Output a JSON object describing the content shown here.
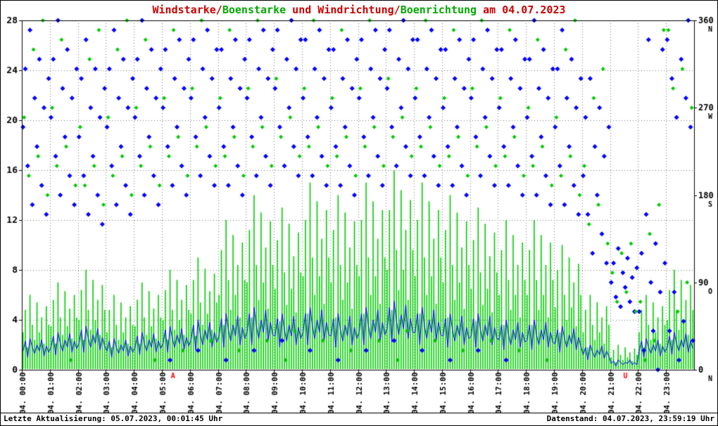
{
  "title": {
    "segments": [
      {
        "text": "Windstarke/",
        "color": "#cc0000"
      },
      {
        "text": "Boenstarke",
        "color": "#00aa00"
      },
      {
        "text": " und Windrichtung/",
        "color": "#cc0000"
      },
      {
        "text": "Boenrichtung",
        "color": "#00aa00"
      },
      {
        "text": " am 04.07.2023",
        "color": "#cc0000"
      }
    ]
  },
  "footer": {
    "left": "Letzte Aktualisierung: 05.07.2023, 00:01:45 Uhr",
    "right": "Datenstand: 04.07.2023, 23:59:19 Uhr"
  },
  "chart_data": {
    "type": "mixed",
    "title": "Windstarke/Boenstarke und Windrichtung/Boenrichtung am 04.07.2023",
    "grid": true,
    "colors": {
      "wind": "#0000ff",
      "gust": "#00cc00",
      "grid": "#777777",
      "axis": "#000000",
      "sun": "#ff0000"
    },
    "left_axis": {
      "min": 0,
      "max": 28,
      "ticks": [
        0,
        4,
        8,
        12,
        16,
        20,
        24,
        28
      ]
    },
    "right_axis": {
      "min": 0,
      "max": 360,
      "ticks": [
        {
          "v": 360,
          "dir": "N"
        },
        {
          "v": 270,
          "dir": "W"
        },
        {
          "v": 180,
          "dir": "S"
        },
        {
          "v": 90,
          "dir": "O"
        },
        {
          "v": 0,
          "dir": "N"
        }
      ]
    },
    "x_axis": {
      "hours": 24,
      "labels": [
        "04. 00:00",
        "04. 01:00",
        "04. 02:00",
        "04. 03:00",
        "04. 04:00",
        "04. 05:00",
        "04. 06:00",
        "04. 07:00",
        "04. 08:00",
        "04. 09:00",
        "04. 10:00",
        "04. 11:00",
        "04. 12:00",
        "04. 13:00",
        "04. 14:00",
        "04. 15:00",
        "04. 16:00",
        "04. 17:00",
        "04. 18:00",
        "04. 19:00",
        "04. 20:00",
        "04. 21:00",
        "04. 22:00",
        "04. 23:00"
      ]
    },
    "sun_marks": [
      {
        "label": "A",
        "hour": 5.4
      },
      {
        "label": "U",
        "hour": 21.55
      }
    ],
    "series": [
      {
        "name": "Boenstarke",
        "type": "bars",
        "axis": "left",
        "color": "#00cc00",
        "interval_min": 5,
        "values": [
          3,
          4.8,
          1.8,
          6,
          3.6,
          2.4,
          5.4,
          3,
          4.2,
          2.1,
          5.1,
          3.6,
          3.5,
          5.6,
          2.1,
          7,
          4.2,
          2.8,
          6.3,
          3.5,
          4.9,
          2.5,
          6,
          4.2,
          4,
          6.4,
          2.4,
          8,
          4.8,
          3.2,
          7.2,
          4,
          5.6,
          2.8,
          6.8,
          4.8,
          3,
          4.8,
          1.8,
          6,
          3.6,
          2.4,
          5.4,
          3,
          4.2,
          2.1,
          5.1,
          3.6,
          3.5,
          5.6,
          2.1,
          7,
          4.2,
          2.8,
          6.3,
          3.5,
          4.9,
          2.5,
          6,
          4.2,
          4,
          6.4,
          2.4,
          8,
          4.8,
          3.2,
          7.2,
          4,
          5.6,
          2.8,
          6.8,
          4.8,
          4.5,
          7.2,
          2.7,
          9,
          5.4,
          3.6,
          8.1,
          4.5,
          6.3,
          3.2,
          7.7,
          5.4,
          6,
          9.6,
          3.6,
          12,
          7.2,
          4.8,
          10.8,
          6,
          8.4,
          4.2,
          10.2,
          7.2,
          7,
          11.2,
          4.2,
          14,
          8.4,
          5.6,
          12.6,
          7,
          9.8,
          4.9,
          11.9,
          8.4,
          6.5,
          10.4,
          3.9,
          13,
          7.8,
          5.2,
          11.7,
          6.5,
          9.1,
          4.6,
          11,
          7.8,
          7.5,
          12,
          4.5,
          15,
          9,
          6,
          13.5,
          7.5,
          10.5,
          5.3,
          12.8,
          9,
          7,
          11.2,
          4.2,
          14,
          8.4,
          5.6,
          12.6,
          7,
          9.8,
          4.9,
          11.9,
          8.4,
          7.5,
          12,
          4.5,
          15,
          9,
          6,
          13.5,
          7.5,
          10.5,
          5.3,
          12.8,
          9,
          8,
          12.8,
          4.8,
          16,
          9.6,
          6.4,
          14.4,
          8,
          11.2,
          5.6,
          13.6,
          9.6,
          7.5,
          12,
          4.5,
          15,
          9,
          6,
          13.5,
          7.5,
          10.5,
          5.3,
          12.8,
          9,
          7,
          11.2,
          4.2,
          14,
          8.4,
          5.6,
          12.6,
          7,
          9.8,
          4.9,
          11.9,
          8.4,
          6.5,
          10.4,
          3.9,
          13,
          7.8,
          5.2,
          11.7,
          6.5,
          9.1,
          4.6,
          11,
          7.8,
          6,
          9.6,
          3.6,
          12,
          7.2,
          4.8,
          10.8,
          6,
          8.4,
          4.2,
          10.2,
          7.2,
          6,
          9.6,
          3.6,
          12,
          7.2,
          4.8,
          10.8,
          6,
          8.4,
          4.2,
          10.2,
          7.2,
          5,
          8,
          3,
          10,
          6,
          4,
          9,
          5,
          7,
          3.5,
          8.5,
          6,
          3,
          4.8,
          1.8,
          6,
          3.6,
          2.4,
          5.4,
          3,
          4.2,
          2.1,
          5.1,
          3.6,
          1,
          1.6,
          0.6,
          2,
          1.2,
          0.8,
          1.8,
          1,
          1.4,
          0.7,
          1.7,
          1.2,
          3,
          4.8,
          1.8,
          6,
          3.6,
          2.4,
          5.4,
          3,
          4.2,
          2.1,
          5.1,
          3.6,
          4,
          6.4,
          2.4,
          8,
          4.8,
          3.2,
          7.2,
          4,
          5.6,
          2.8,
          6.8,
          4.8
        ]
      },
      {
        "name": "Windstarke",
        "type": "line",
        "axis": "left",
        "color": "#0000ff",
        "interval_min": 5,
        "values": [
          1.5,
          2.3,
          1,
          2.5,
          1.8,
          1.3,
          2,
          1.5,
          2.4,
          1.1,
          1.9,
          1.4,
          1.8,
          2.7,
          1.2,
          3,
          2.1,
          1.5,
          2.4,
          1.8,
          2.9,
          1.4,
          2.3,
          1.7,
          2.1,
          3.2,
          1.4,
          3.5,
          2.5,
          1.8,
          2.8,
          2.1,
          3.3,
          1.6,
          2.6,
          1.9,
          1.5,
          2.3,
          1,
          2.5,
          1.8,
          1.3,
          2,
          1.5,
          2.4,
          1.1,
          1.9,
          1.4,
          1.8,
          2.7,
          1.2,
          3,
          2.1,
          1.5,
          2.4,
          1.8,
          2.9,
          1.4,
          2.3,
          1.7,
          2.1,
          3.2,
          1.4,
          3.5,
          2.5,
          1.8,
          2.8,
          2.1,
          3.3,
          1.6,
          2.6,
          1.9,
          2.4,
          3.6,
          1.6,
          4,
          2.8,
          2,
          3.2,
          2.4,
          3.8,
          1.8,
          3,
          2.2,
          2.7,
          4.1,
          1.8,
          4.5,
          3.2,
          2.3,
          3.6,
          2.7,
          4.3,
          2,
          3.4,
          2.5,
          3,
          4.5,
          2,
          5,
          3.5,
          2.5,
          4,
          3,
          4.8,
          2.3,
          3.8,
          2.8,
          2.7,
          4.1,
          1.8,
          4.5,
          3.2,
          2.3,
          3.6,
          2.7,
          4.3,
          2,
          3.4,
          2.5,
          3,
          4.5,
          2,
          5,
          3.5,
          2.5,
          4,
          3,
          4.8,
          2.3,
          3.8,
          2.8,
          2.7,
          4.1,
          1.8,
          4.5,
          3.2,
          2.3,
          3.6,
          2.7,
          4.3,
          2,
          3.4,
          2.5,
          3,
          4.5,
          2,
          5,
          3.5,
          2.5,
          4,
          3,
          4.8,
          2.3,
          3.8,
          2.8,
          3.3,
          5,
          2.2,
          5.5,
          3.9,
          2.8,
          4.4,
          3.3,
          5.2,
          2.5,
          4.1,
          3,
          3,
          4.5,
          2,
          5,
          3.5,
          2.5,
          4,
          3,
          4.8,
          2.3,
          3.8,
          2.8,
          2.7,
          4.1,
          1.8,
          4.5,
          3.2,
          2.3,
          3.6,
          2.7,
          4.3,
          2,
          3.4,
          2.5,
          2.7,
          4.1,
          1.8,
          4.5,
          3.2,
          2.3,
          3.6,
          2.7,
          4.3,
          2,
          3.4,
          2.5,
          2.4,
          3.6,
          1.6,
          4,
          2.8,
          2,
          3.2,
          2.4,
          3.8,
          1.8,
          3,
          2.2,
          2.4,
          3.6,
          1.6,
          4,
          2.8,
          2,
          3.2,
          2.4,
          3.8,
          1.8,
          3,
          2.2,
          2.1,
          3.2,
          1.4,
          3.5,
          2.5,
          1.8,
          2.8,
          2.1,
          3.3,
          1.6,
          2.6,
          1.9,
          1.2,
          1.8,
          0.8,
          2,
          1.4,
          1,
          1.6,
          1.2,
          1.9,
          0.9,
          1.5,
          1.1,
          0.5,
          0.7,
          0.3,
          0.8,
          0.6,
          0.4,
          0.6,
          0.5,
          0.8,
          0.4,
          0.6,
          0.4,
          1.5,
          2.3,
          1,
          2.5,
          1.8,
          1.3,
          2,
          1.5,
          2.4,
          1.1,
          1.9,
          1.4,
          1.8,
          2.7,
          1.2,
          3,
          2.1,
          1.5,
          2.4,
          1.8,
          2.9,
          1.4,
          2.3,
          1.7
        ]
      },
      {
        "name": "Windrichtung",
        "type": "scatter",
        "axis": "right",
        "color": "#0000ff",
        "interval_min": 5,
        "values": [
          250,
          310,
          210,
          350,
          170,
          280,
          230,
          320,
          190,
          270,
          160,
          300,
          260,
          320,
          220,
          360,
          180,
          290,
          240,
          330,
          200,
          280,
          170,
          310,
          240,
          300,
          200,
          340,
          160,
          270,
          220,
          310,
          180,
          260,
          150,
          290,
          250,
          310,
          210,
          350,
          170,
          280,
          230,
          320,
          190,
          270,
          160,
          300,
          260,
          320,
          220,
          360,
          180,
          290,
          240,
          330,
          200,
          280,
          170,
          310,
          270,
          330,
          230,
          10,
          190,
          300,
          250,
          340,
          210,
          290,
          180,
          320,
          280,
          340,
          240,
          20,
          200,
          310,
          260,
          350,
          220,
          300,
          190,
          330,
          270,
          330,
          230,
          10,
          190,
          300,
          250,
          340,
          210,
          290,
          180,
          320,
          280,
          340,
          240,
          20,
          200,
          310,
          260,
          350,
          220,
          300,
          190,
          330,
          290,
          350,
          250,
          30,
          210,
          320,
          270,
          360,
          230,
          310,
          200,
          340,
          280,
          340,
          240,
          20,
          200,
          310,
          260,
          350,
          220,
          300,
          190,
          330,
          270,
          330,
          230,
          10,
          190,
          300,
          250,
          340,
          210,
          290,
          180,
          320,
          280,
          340,
          240,
          20,
          200,
          310,
          260,
          350,
          220,
          300,
          190,
          330,
          290,
          350,
          250,
          30,
          210,
          320,
          270,
          360,
          230,
          310,
          200,
          340,
          280,
          340,
          240,
          20,
          200,
          310,
          260,
          350,
          220,
          300,
          190,
          330,
          270,
          330,
          230,
          10,
          190,
          300,
          250,
          340,
          210,
          290,
          180,
          320,
          280,
          340,
          240,
          20,
          200,
          310,
          260,
          350,
          220,
          300,
          190,
          330,
          270,
          330,
          230,
          10,
          190,
          300,
          250,
          340,
          210,
          290,
          180,
          320,
          260,
          320,
          220,
          360,
          180,
          290,
          240,
          330,
          200,
          280,
          170,
          310,
          250,
          310,
          210,
          350,
          170,
          280,
          230,
          320,
          190,
          270,
          160,
          300,
          200,
          260,
          160,
          300,
          120,
          230,
          180,
          270,
          140,
          220,
          110,
          250,
          90,
          110,
          75,
          125,
          65,
          100,
          85,
          115,
          70,
          95,
          60,
          105,
          60,
          120,
          20,
          160,
          340,
          90,
          40,
          130,
          0,
          80,
          330,
          110,
          340,
          40,
          300,
          80,
          260,
          10,
          320,
          50,
          280,
          360,
          250,
          30
        ]
      },
      {
        "name": "Boenrichtung",
        "type": "scatter",
        "axis": "right",
        "color": "#00cc00",
        "interval_min": 10,
        "values": [
          260,
          200,
          330,
          220,
          360,
          180,
          270,
          210,
          340,
          230,
          10,
          190,
          250,
          190,
          320,
          210,
          350,
          170,
          260,
          200,
          330,
          220,
          360,
          180,
          270,
          210,
          340,
          230,
          10,
          190,
          280,
          220,
          350,
          240,
          20,
          200,
          290,
          230,
          360,
          250,
          30,
          210,
          280,
          220,
          350,
          240,
          20,
          200,
          290,
          230,
          360,
          250,
          30,
          210,
          300,
          240,
          10,
          260,
          40,
          220,
          290,
          230,
          360,
          250,
          30,
          210,
          280,
          220,
          350,
          240,
          20,
          200,
          290,
          230,
          360,
          250,
          30,
          210,
          300,
          240,
          10,
          260,
          40,
          220,
          290,
          230,
          360,
          250,
          30,
          210,
          280,
          220,
          350,
          240,
          20,
          200,
          290,
          230,
          360,
          250,
          30,
          210,
          280,
          220,
          350,
          240,
          20,
          200,
          270,
          210,
          340,
          230,
          10,
          190,
          260,
          200,
          330,
          220,
          360,
          180,
          210,
          150,
          280,
          170,
          310,
          130,
          100,
          70,
          120,
          80,
          130,
          60,
          70,
          10,
          140,
          30,
          170,
          350,
          350,
          290,
          60,
          310,
          90,
          270
        ]
      }
    ]
  }
}
